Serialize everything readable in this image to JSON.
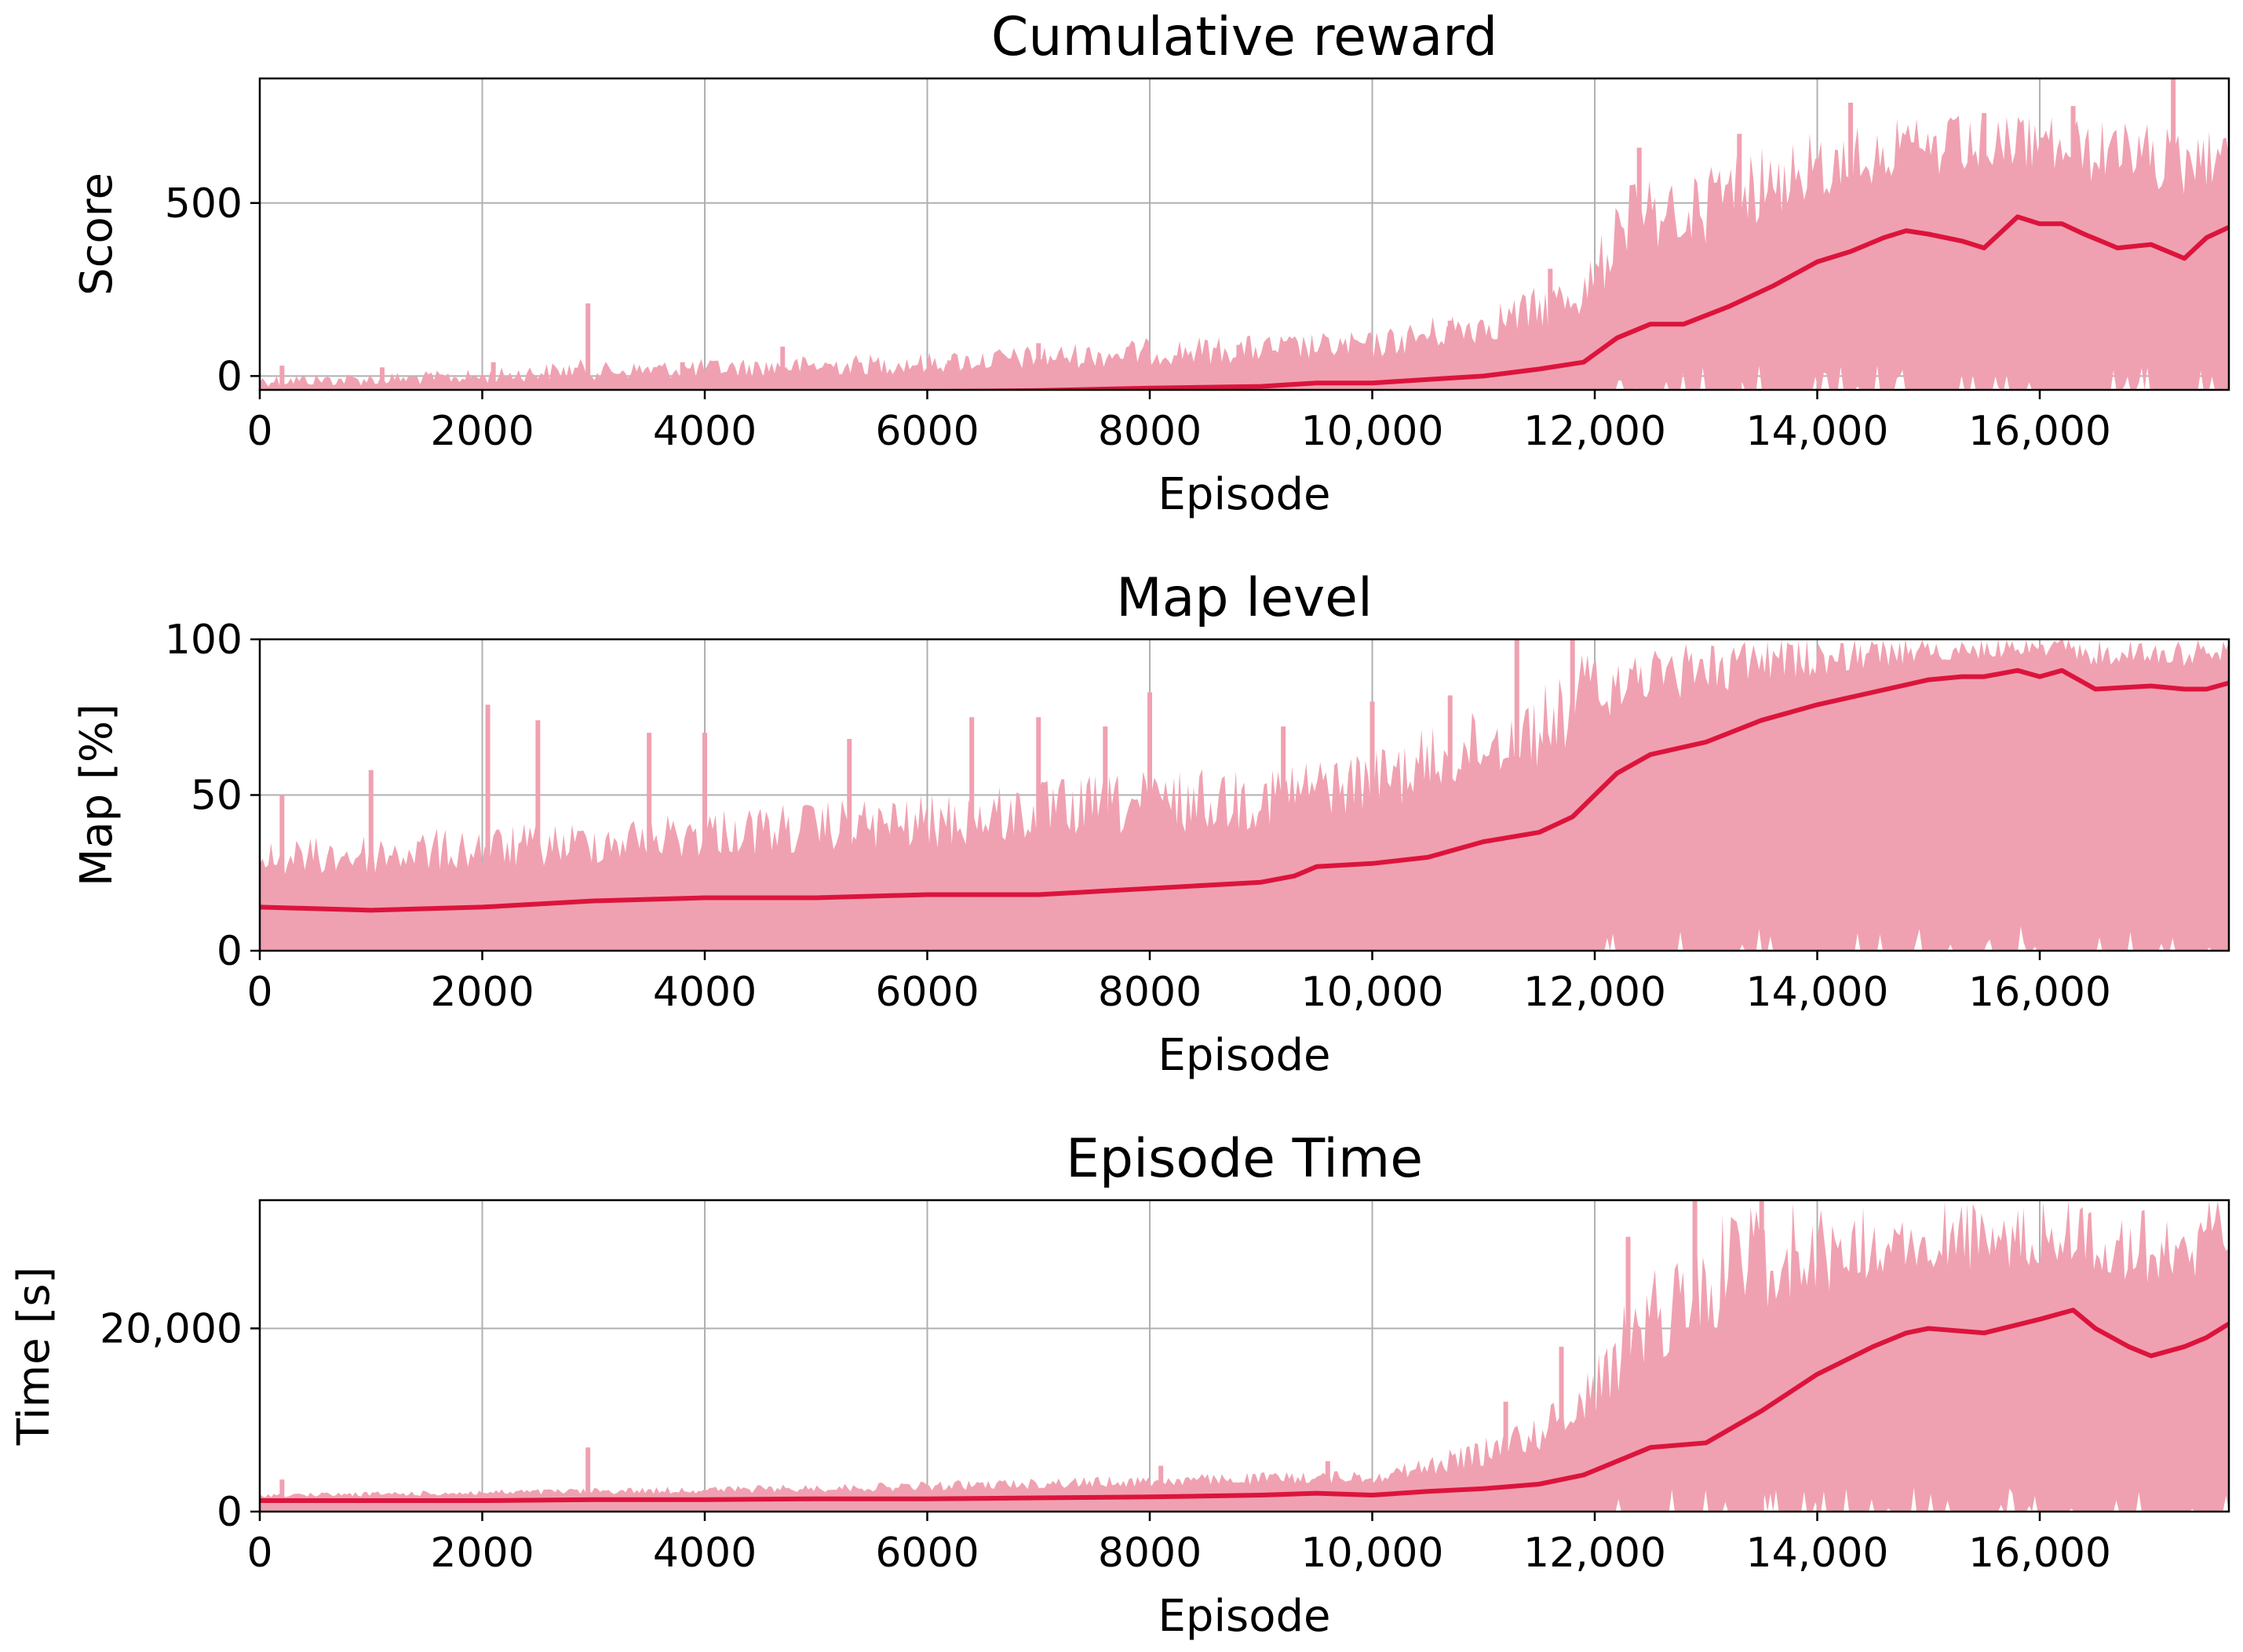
{
  "colors": {
    "raw_fill": "#f0a1b1",
    "moving_avg": "#dc143c",
    "grid": "#b0b0b0",
    "axis": "#000000"
  },
  "chart_data": [
    {
      "type": "area",
      "title": "Cumulative reward",
      "xlabel": "Episode",
      "ylabel": "Score",
      "xlim": [
        0,
        17700
      ],
      "ylim": [
        -40,
        860
      ],
      "grid": true,
      "xticks": [
        0,
        2000,
        4000,
        6000,
        8000,
        10000,
        12000,
        14000,
        16000
      ],
      "xtick_labels": [
        "0",
        "2000",
        "4000",
        "6000",
        "8000",
        "10,000",
        "12,000",
        "14,000",
        "16,000"
      ],
      "yticks": [
        0,
        500
      ],
      "ytick_labels": [
        "0",
        "500"
      ],
      "series": [
        {
          "kind": "raw-envelope",
          "x": [
            0,
            1000,
            2000,
            2900,
            3000,
            4000,
            5000,
            6000,
            7000,
            8000,
            9000,
            10000,
            10500,
            11000,
            11500,
            11800,
            12000,
            12100,
            12300,
            12600,
            13000,
            13500,
            14000,
            14500,
            15000,
            15500,
            16000,
            16500,
            17000,
            17500,
            17700
          ],
          "upper": [
            5,
            10,
            20,
            50,
            40,
            50,
            60,
            70,
            90,
            110,
            120,
            130,
            170,
            210,
            260,
            310,
            360,
            450,
            550,
            600,
            640,
            690,
            720,
            740,
            750,
            760,
            760,
            740,
            730,
            720,
            720
          ],
          "lower": [
            -40,
            -40,
            -40,
            -40,
            -40,
            -40,
            -40,
            -40,
            -40,
            -40,
            -40,
            -40,
            -40,
            -40,
            -40,
            -40,
            -40,
            -40,
            -40,
            -40,
            -40,
            -40,
            -40,
            -40,
            -40,
            -40,
            -40,
            -40,
            -40,
            -40,
            -40
          ],
          "spikes": [
            [
              200,
              30
            ],
            [
              1100,
              25
            ],
            [
              2100,
              40
            ],
            [
              2950,
              210
            ],
            [
              3800,
              40
            ],
            [
              4700,
              85
            ],
            [
              6200,
              45
            ],
            [
              7000,
              95
            ],
            [
              8800,
              90
            ],
            [
              9300,
              100
            ],
            [
              10700,
              160
            ],
            [
              11600,
              310
            ],
            [
              12400,
              660
            ],
            [
              13300,
              700
            ],
            [
              14300,
              790
            ],
            [
              15500,
              760
            ],
            [
              16300,
              780
            ],
            [
              17200,
              870
            ]
          ]
        },
        {
          "kind": "moving-average",
          "x": [
            0,
            1000,
            2000,
            3000,
            4000,
            5000,
            6000,
            7000,
            8000,
            9000,
            9500,
            10000,
            10500,
            11000,
            11500,
            11900,
            12200,
            12500,
            12800,
            13200,
            13600,
            14000,
            14300,
            14600,
            14800,
            15000,
            15300,
            15500,
            15800,
            16000,
            16200,
            16400,
            16700,
            17000,
            17300,
            17500,
            17700
          ],
          "y": [
            -60,
            -60,
            -58,
            -55,
            -52,
            -50,
            -45,
            -42,
            -35,
            -30,
            -20,
            -20,
            -10,
            0,
            20,
            40,
            110,
            150,
            150,
            200,
            260,
            330,
            360,
            400,
            420,
            410,
            390,
            370,
            460,
            440,
            440,
            410,
            370,
            380,
            340,
            400,
            430
          ]
        }
      ]
    },
    {
      "type": "area",
      "title": "Map level",
      "xlabel": "Episode",
      "ylabel": "Map [%]",
      "xlim": [
        0,
        17700
      ],
      "ylim": [
        0,
        100
      ],
      "grid": true,
      "xticks": [
        0,
        2000,
        4000,
        6000,
        8000,
        10000,
        12000,
        14000,
        16000
      ],
      "xtick_labels": [
        "0",
        "2000",
        "4000",
        "6000",
        "8000",
        "10,000",
        "12,000",
        "14,000",
        "16,000"
      ],
      "yticks": [
        0,
        50,
        100
      ],
      "ytick_labels": [
        "0",
        "50",
        "100"
      ],
      "series": [
        {
          "kind": "raw-envelope",
          "x": [
            0,
            1000,
            2000,
            3000,
            4000,
            5000,
            6000,
            7000,
            8000,
            9000,
            10000,
            10500,
            11000,
            11500,
            11800,
            12000,
            12100,
            17700
          ],
          "upper": [
            35,
            38,
            40,
            42,
            46,
            48,
            50,
            55,
            58,
            60,
            65,
            72,
            78,
            85,
            92,
            100,
            100,
            100
          ],
          "lower": [
            0,
            0,
            0,
            0,
            0,
            0,
            0,
            0,
            0,
            0,
            0,
            0,
            0,
            0,
            0,
            0,
            0,
            0
          ],
          "spikes": [
            [
              200,
              50
            ],
            [
              1000,
              58
            ],
            [
              2050,
              79
            ],
            [
              2500,
              74
            ],
            [
              3500,
              70
            ],
            [
              4000,
              70
            ],
            [
              5300,
              68
            ],
            [
              6400,
              75
            ],
            [
              7000,
              75
            ],
            [
              7600,
              72
            ],
            [
              8000,
              83
            ],
            [
              9200,
              72
            ],
            [
              10000,
              80
            ],
            [
              10700,
              82
            ],
            [
              11300,
              100
            ],
            [
              11800,
              100
            ]
          ]
        },
        {
          "kind": "moving-average",
          "x": [
            0,
            1000,
            2000,
            3000,
            4000,
            5000,
            6000,
            7000,
            8000,
            9000,
            9300,
            9500,
            10000,
            10500,
            11000,
            11500,
            11800,
            12000,
            12200,
            12500,
            13000,
            13500,
            14000,
            14500,
            15000,
            15300,
            15500,
            15800,
            16000,
            16200,
            16500,
            17000,
            17300,
            17500,
            17700
          ],
          "y": [
            14,
            13,
            14,
            16,
            17,
            17,
            18,
            18,
            20,
            22,
            24,
            27,
            28,
            30,
            35,
            38,
            43,
            50,
            57,
            63,
            67,
            74,
            79,
            83,
            87,
            88,
            88,
            90,
            88,
            90,
            84,
            85,
            84,
            84,
            86
          ]
        }
      ]
    },
    {
      "type": "area",
      "title": "Episode Time",
      "xlabel": "Episode",
      "ylabel": "Time [s]",
      "xlim": [
        0,
        17700
      ],
      "ylim": [
        0,
        34000
      ],
      "grid": true,
      "xticks": [
        0,
        2000,
        4000,
        6000,
        8000,
        10000,
        12000,
        14000,
        16000
      ],
      "xtick_labels": [
        "0",
        "2000",
        "4000",
        "6000",
        "8000",
        "10,000",
        "12,000",
        "14,000",
        "16,000"
      ],
      "yticks": [
        0,
        20000
      ],
      "ytick_labels": [
        "0",
        "20,000"
      ],
      "series": [
        {
          "kind": "raw-envelope",
          "x": [
            0,
            1000,
            2000,
            3000,
            4000,
            5000,
            6000,
            7000,
            8000,
            9000,
            10000,
            10500,
            11000,
            11500,
            11800,
            12000,
            12300,
            12600,
            12900,
            13200,
            17700
          ],
          "upper": [
            2000,
            2200,
            2400,
            2600,
            2800,
            3000,
            3300,
            3700,
            4000,
            4300,
            4600,
            6000,
            8000,
            11000,
            14000,
            18000,
            24000,
            28000,
            32000,
            34000,
            34000
          ],
          "lower": [
            0,
            0,
            0,
            0,
            0,
            0,
            0,
            0,
            0,
            0,
            0,
            0,
            0,
            0,
            0,
            0,
            0,
            0,
            0,
            0,
            0
          ],
          "spikes": [
            [
              200,
              3500
            ],
            [
              2950,
              7000
            ],
            [
              8100,
              5000
            ],
            [
              9600,
              5500
            ],
            [
              11200,
              12000
            ],
            [
              11700,
              18000
            ],
            [
              12300,
              30000
            ],
            [
              12900,
              34000
            ],
            [
              13500,
              34000
            ]
          ]
        },
        {
          "kind": "moving-average",
          "x": [
            0,
            1000,
            2000,
            3000,
            4000,
            5000,
            6000,
            7000,
            8000,
            9000,
            9500,
            10000,
            10500,
            11000,
            11500,
            11900,
            12200,
            12500,
            13000,
            13500,
            14000,
            14500,
            14800,
            15000,
            15500,
            16000,
            16300,
            16500,
            16800,
            17000,
            17300,
            17500,
            17700
          ],
          "y": [
            1200,
            1200,
            1200,
            1300,
            1300,
            1400,
            1400,
            1500,
            1600,
            1800,
            2000,
            1800,
            2200,
            2500,
            3000,
            4000,
            5500,
            7000,
            7500,
            11000,
            15000,
            18000,
            19500,
            20000,
            19500,
            21000,
            22000,
            20000,
            18000,
            17000,
            18000,
            19000,
            20500
          ]
        }
      ]
    }
  ]
}
